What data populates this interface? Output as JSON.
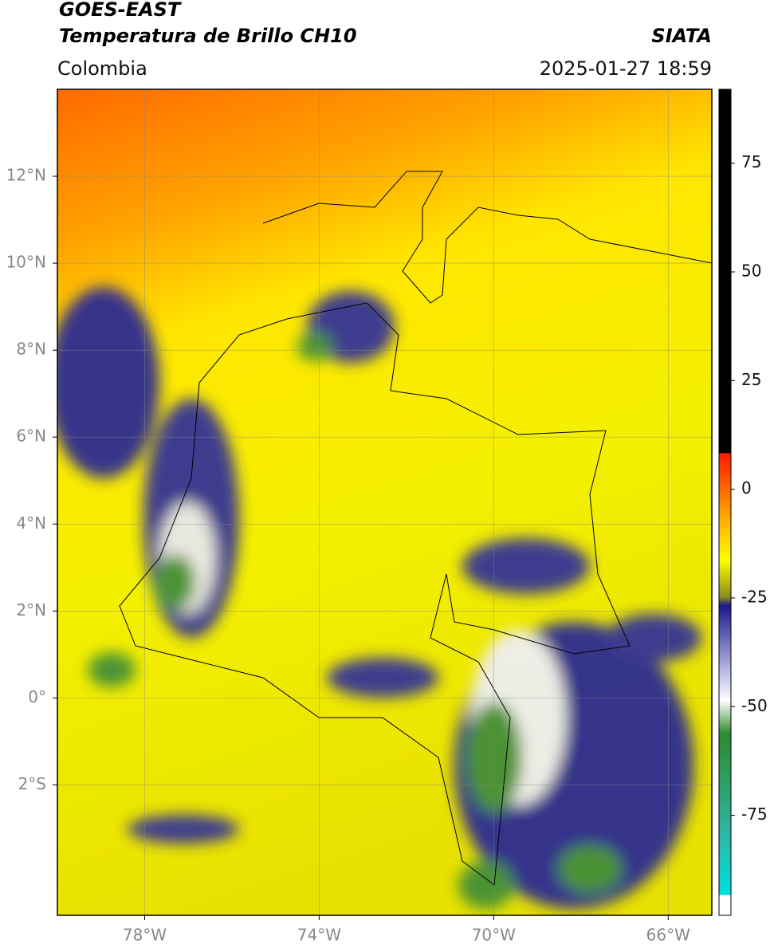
{
  "header": {
    "title_line1": "GOES-EAST",
    "title_line2": "Temperatura de Brillo CH10",
    "source": "SIATA",
    "region": "Colombia",
    "datetime": "2025-01-27 18:59"
  },
  "map": {
    "xlim": [
      -80,
      -65
    ],
    "ylim": [
      -5,
      14
    ],
    "xticks": [
      {
        "value": -78,
        "label": "78°W"
      },
      {
        "value": -74,
        "label": "74°W"
      },
      {
        "value": -70,
        "label": "70°W"
      },
      {
        "value": -66,
        "label": "66°W"
      }
    ],
    "yticks": [
      {
        "value": 12,
        "label": "12°N"
      },
      {
        "value": 10,
        "label": "10°N"
      },
      {
        "value": 8,
        "label": "8°N"
      },
      {
        "value": 6,
        "label": "6°N"
      },
      {
        "value": 4,
        "label": "4°N"
      },
      {
        "value": 2,
        "label": "2°N"
      },
      {
        "value": 0,
        "label": "0°"
      },
      {
        "value": -2,
        "label": "2°S"
      }
    ]
  },
  "colorbar": {
    "lim": [
      -98,
      92
    ],
    "ticks": [
      75,
      50,
      25,
      0,
      -25,
      -50,
      -75
    ]
  }
}
